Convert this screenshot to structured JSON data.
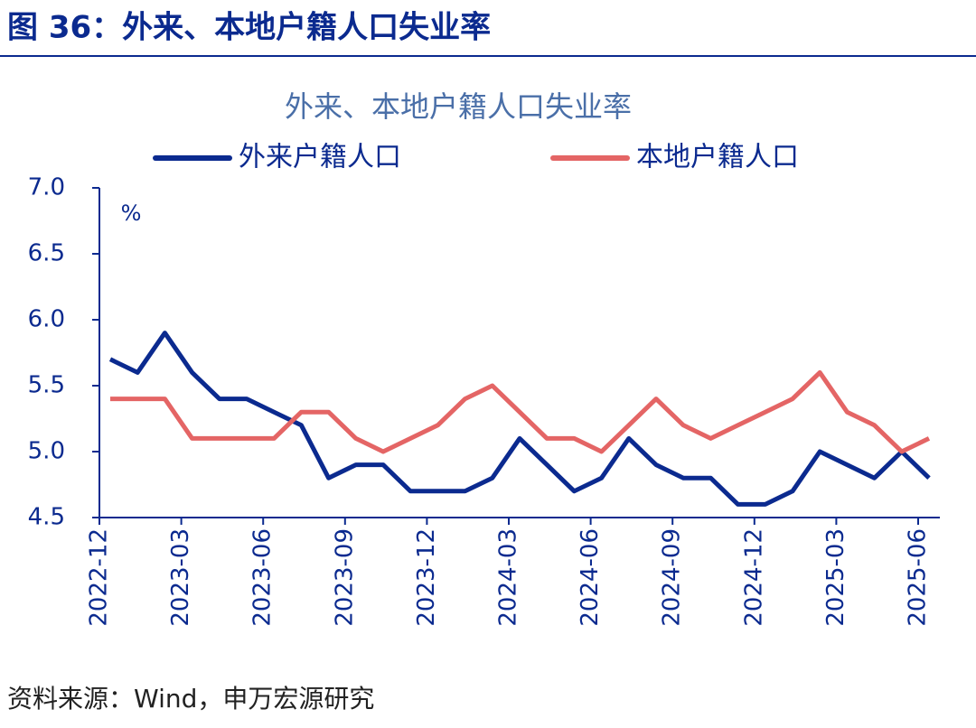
{
  "header": {
    "title": "图 36：外来、本地户籍人口失业率"
  },
  "chart_data": {
    "type": "line",
    "title": "外来、本地户籍人口失业率",
    "y_unit": "%",
    "categories": [
      "2022-12",
      null,
      null,
      "2023-03",
      null,
      null,
      "2023-06",
      null,
      null,
      "2023-09",
      null,
      null,
      "2023-12",
      null,
      null,
      "2024-03",
      null,
      null,
      "2024-06",
      null,
      null,
      "2024-09",
      null,
      null,
      "2024-12",
      null,
      null,
      "2025-03",
      null,
      null,
      "2025-06"
    ],
    "series": [
      {
        "name": "外来户籍人口",
        "color": "#0b2a8f",
        "values": [
          5.7,
          5.6,
          5.9,
          5.6,
          5.4,
          5.4,
          5.3,
          5.2,
          4.8,
          4.9,
          4.9,
          4.7,
          4.7,
          4.7,
          4.8,
          5.1,
          4.9,
          4.7,
          4.8,
          5.1,
          4.9,
          4.8,
          4.8,
          4.6,
          4.6,
          4.7,
          5.0,
          4.9,
          4.8,
          5.0,
          4.8
        ]
      },
      {
        "name": "本地户籍人口",
        "color": "#e46565",
        "values": [
          5.4,
          5.4,
          5.4,
          5.1,
          5.1,
          5.1,
          5.1,
          5.3,
          5.3,
          5.1,
          5.0,
          5.1,
          5.2,
          5.4,
          5.5,
          5.3,
          5.1,
          5.1,
          5.0,
          5.2,
          5.4,
          5.2,
          5.1,
          5.2,
          5.3,
          5.4,
          5.6,
          5.3,
          5.2,
          5.0,
          5.1
        ]
      }
    ],
    "ylim": [
      4.5,
      7.0
    ],
    "yticks": [
      4.5,
      {
        "value": 5.0,
        "label": "5.0"
      },
      5.5,
      {
        "value": 6.0,
        "label": "6.0"
      },
      6.5,
      {
        "value": 7.0,
        "label": "7.0"
      }
    ],
    "legend": "top"
  },
  "footer": {
    "source": "资料来源：Wind，申万宏源研究"
  }
}
